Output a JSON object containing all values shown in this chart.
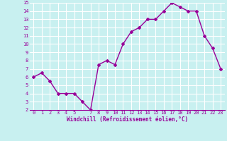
{
  "x": [
    0,
    1,
    2,
    3,
    4,
    5,
    6,
    7,
    8,
    9,
    10,
    11,
    12,
    13,
    14,
    15,
    16,
    17,
    18,
    19,
    20,
    21,
    22,
    23
  ],
  "y": [
    6,
    6.5,
    5.5,
    4,
    4,
    4,
    3,
    2,
    7.5,
    8,
    7.5,
    10,
    11.5,
    12,
    13,
    13,
    14,
    15,
    14.5,
    14,
    14,
    11,
    9.5,
    7
  ],
  "line_color": "#990099",
  "marker": "D",
  "marker_size": 2,
  "bg_color": "#c8f0f0",
  "grid_color": "#ffffff",
  "xlabel": "Windchill (Refroidissement éolien,°C)",
  "xlabel_color": "#990099",
  "tick_color": "#990099",
  "ylim": [
    2,
    15
  ],
  "xlim": [
    -0.5,
    23.5
  ],
  "yticks": [
    2,
    3,
    4,
    5,
    6,
    7,
    8,
    9,
    10,
    11,
    12,
    13,
    14,
    15
  ],
  "xtick_labels": [
    "0",
    "1",
    "2",
    "3",
    "4",
    "5",
    "",
    "7",
    "8",
    "9",
    "10",
    "11",
    "12",
    "13",
    "14",
    "15",
    "16",
    "17",
    "18",
    "19",
    "20",
    "21",
    "22",
    "23"
  ],
  "xticks": [
    0,
    1,
    2,
    3,
    4,
    5,
    6,
    7,
    8,
    9,
    10,
    11,
    12,
    13,
    14,
    15,
    16,
    17,
    18,
    19,
    20,
    21,
    22,
    23
  ],
  "tick_fontsize": 5,
  "xlabel_fontsize": 5.5,
  "linewidth": 1.0
}
